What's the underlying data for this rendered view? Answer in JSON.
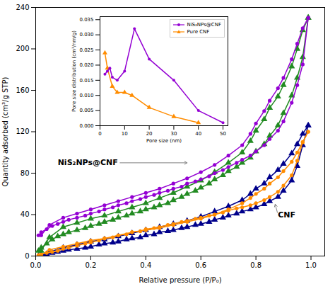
{
  "chart_data": [
    {
      "type": "line",
      "xlabel": "Relative pressure (P/P₀)",
      "ylabel": "Quantity adsorbed (cm³/g STP)",
      "xlim": [
        0.0,
        1.05
      ],
      "ylim": [
        0,
        240
      ],
      "xticks": [
        {
          "value": 0.0,
          "label": "0.0"
        },
        0.2,
        0.4,
        0.6,
        0.8,
        {
          "value": 1.0,
          "label": "1.0"
        }
      ],
      "yticks": [
        0,
        40,
        80,
        120,
        160,
        200,
        240
      ],
      "series": [
        {
          "color": "#9400D3",
          "marker": "circle",
          "x": [
            0.01,
            0.02,
            0.04,
            0.06,
            0.08,
            0.1,
            0.12,
            0.15,
            0.18,
            0.2,
            0.23,
            0.25,
            0.28,
            0.3,
            0.33,
            0.35,
            0.38,
            0.4,
            0.43,
            0.45,
            0.48,
            0.5,
            0.53,
            0.55,
            0.58,
            0.6,
            0.63,
            0.65,
            0.68,
            0.7,
            0.73,
            0.75,
            0.78,
            0.8,
            0.83,
            0.85,
            0.88,
            0.9,
            0.93,
            0.95,
            0.97,
            0.99
          ],
          "values": [
            20,
            23,
            26,
            29,
            31,
            33,
            35,
            37,
            39,
            41,
            43,
            45,
            47,
            49,
            51,
            53,
            55,
            57,
            59,
            61,
            63,
            65,
            67,
            70,
            72,
            74,
            77,
            80,
            83,
            86,
            90,
            93,
            97,
            101,
            107,
            113,
            121,
            130,
            148,
            165,
            185,
            230
          ]
        },
        {
          "color": "#9400D3",
          "marker": "circle",
          "x": [
            0.99,
            0.97,
            0.95,
            0.93,
            0.9,
            0.88,
            0.85,
            0.83,
            0.8,
            0.78,
            0.75,
            0.7,
            0.65,
            0.6,
            0.55,
            0.5,
            0.45,
            0.4,
            0.35,
            0.3,
            0.25,
            0.2,
            0.15,
            0.1,
            0.05,
            0.02
          ],
          "values": [
            230,
            220,
            205,
            190,
            172,
            162,
            150,
            140,
            128,
            118,
            107,
            97,
            88,
            81,
            75,
            70,
            65,
            61,
            57,
            53,
            49,
            45,
            41,
            37,
            30,
            20
          ]
        },
        {
          "color": "#228B22",
          "marker": "triangle",
          "x": [
            0.01,
            0.02,
            0.04,
            0.06,
            0.08,
            0.1,
            0.12,
            0.15,
            0.18,
            0.2,
            0.23,
            0.25,
            0.28,
            0.3,
            0.33,
            0.35,
            0.38,
            0.4,
            0.43,
            0.45,
            0.48,
            0.5,
            0.53,
            0.55,
            0.58,
            0.6,
            0.63,
            0.65,
            0.68,
            0.7,
            0.73,
            0.75,
            0.78,
            0.8,
            0.83,
            0.85,
            0.88,
            0.9,
            0.93,
            0.95,
            0.97,
            0.99
          ],
          "values": [
            5,
            8,
            12,
            16,
            19,
            21,
            23,
            25,
            27,
            29,
            31,
            33,
            35,
            37,
            39,
            41,
            43,
            45,
            47,
            49,
            51,
            54,
            57,
            60,
            63,
            66,
            70,
            74,
            78,
            82,
            86,
            90,
            95,
            101,
            108,
            116,
            126,
            138,
            155,
            172,
            192,
            230
          ]
        },
        {
          "color": "#228B22",
          "marker": "triangle",
          "x": [
            0.99,
            0.97,
            0.95,
            0.93,
            0.9,
            0.88,
            0.85,
            0.83,
            0.8,
            0.78,
            0.75,
            0.7,
            0.65,
            0.6,
            0.55,
            0.5,
            0.45,
            0.4,
            0.35,
            0.3,
            0.25,
            0.2,
            0.15,
            0.1,
            0.05,
            0.02
          ],
          "values": [
            230,
            218,
            200,
            183,
            165,
            154,
            143,
            132,
            121,
            111,
            100,
            90,
            81,
            73,
            67,
            61,
            56,
            51,
            47,
            43,
            39,
            36,
            32,
            28,
            18,
            5
          ]
        },
        {
          "color": "#FF8C00",
          "marker": "circle",
          "x": [
            0.01,
            0.02,
            0.04,
            0.06,
            0.08,
            0.1,
            0.12,
            0.15,
            0.18,
            0.2,
            0.23,
            0.25,
            0.28,
            0.3,
            0.33,
            0.35,
            0.38,
            0.4,
            0.43,
            0.45,
            0.48,
            0.5,
            0.53,
            0.55,
            0.58,
            0.6,
            0.63,
            0.65,
            0.68,
            0.7,
            0.73,
            0.75,
            0.78,
            0.8,
            0.83,
            0.85,
            0.88,
            0.9,
            0.93,
            0.95,
            0.97,
            0.99
          ],
          "values": [
            1,
            2,
            3,
            4,
            5,
            7,
            8,
            10,
            12,
            13,
            15,
            17,
            18,
            20,
            21,
            23,
            24,
            26,
            27,
            28,
            30,
            31,
            33,
            34,
            36,
            37,
            39,
            40,
            42,
            44,
            46,
            47,
            49,
            51,
            54,
            57,
            62,
            68,
            78,
            92,
            110,
            120
          ]
        },
        {
          "color": "#FF8C00",
          "marker": "circle",
          "x": [
            0.99,
            0.97,
            0.95,
            0.93,
            0.9,
            0.88,
            0.85,
            0.83,
            0.8,
            0.78,
            0.75,
            0.7,
            0.65,
            0.6,
            0.55,
            0.5,
            0.45,
            0.4,
            0.35,
            0.3,
            0.25,
            0.2,
            0.15,
            0.1,
            0.05,
            0.02
          ],
          "values": [
            120,
            110,
            100,
            91,
            82,
            76,
            70,
            65,
            60,
            56,
            51,
            45,
            40,
            36,
            33,
            30,
            27,
            25,
            23,
            20,
            17,
            15,
            12,
            9,
            6,
            1
          ]
        },
        {
          "color": "#00008B",
          "marker": "triangle",
          "x": [
            0.01,
            0.02,
            0.04,
            0.06,
            0.08,
            0.1,
            0.12,
            0.15,
            0.18,
            0.2,
            0.23,
            0.25,
            0.28,
            0.3,
            0.33,
            0.35,
            0.38,
            0.4,
            0.43,
            0.45,
            0.48,
            0.5,
            0.53,
            0.55,
            0.58,
            0.6,
            0.63,
            0.65,
            0.68,
            0.7,
            0.73,
            0.75,
            0.78,
            0.8,
            0.83,
            0.85,
            0.88,
            0.9,
            0.93,
            0.95,
            0.97,
            0.99
          ],
          "values": [
            0,
            1,
            2,
            3,
            4,
            5,
            6,
            7,
            8,
            9,
            11,
            12,
            13,
            14,
            16,
            17,
            18,
            20,
            21,
            23,
            24,
            25,
            27,
            28,
            30,
            31,
            33,
            35,
            37,
            39,
            41,
            43,
            45,
            47,
            50,
            53,
            57,
            63,
            73,
            87,
            107,
            126
          ]
        },
        {
          "color": "#00008B",
          "marker": "triangle",
          "x": [
            0.99,
            0.97,
            0.95,
            0.93,
            0.9,
            0.88,
            0.85,
            0.83,
            0.8,
            0.78,
            0.75,
            0.7,
            0.65,
            0.6,
            0.55,
            0.5,
            0.45,
            0.4,
            0.35,
            0.3,
            0.25,
            0.2,
            0.15,
            0.1,
            0.05,
            0.02
          ],
          "values": [
            126,
            118,
            108,
            99,
            89,
            83,
            76,
            70,
            65,
            60,
            54,
            48,
            43,
            38,
            34,
            31,
            28,
            25,
            22,
            19,
            16,
            14,
            11,
            8,
            4,
            0
          ]
        }
      ],
      "annotations": [
        {
          "text": "NiS₂NPs@CNF",
          "xy": [
            0.55,
            90
          ],
          "xytext": [
            0.08,
            90
          ]
        },
        {
          "text": "CNF",
          "xy": [
            0.87,
            50
          ],
          "xytext": [
            0.88,
            40
          ]
        }
      ]
    },
    {
      "type": "line",
      "xlabel": "Pore size (nm)",
      "ylabel": "Pore size distribution (cm³/nm/g)",
      "xlim": [
        0,
        52
      ],
      "ylim": [
        0,
        0.036
      ],
      "xticks": [
        0,
        10,
        20,
        30,
        40,
        50
      ],
      "yticks": [
        {
          "value": 0.0,
          "label": "0.000"
        },
        0.005,
        {
          "value": 0.01,
          "label": "0.010"
        },
        0.015,
        {
          "value": 0.02,
          "label": "0.020"
        },
        0.025,
        {
          "value": 0.03,
          "label": "0.030"
        },
        0.035
      ],
      "legend": "upper right",
      "series": [
        {
          "name": "NiS₂NPs@CNF",
          "color": "#9400D3",
          "marker": "circle",
          "x": [
            2,
            3,
            4,
            5,
            7,
            10,
            14,
            20,
            30,
            40,
            50
          ],
          "values": [
            0.017,
            0.018,
            0.019,
            0.016,
            0.015,
            0.018,
            0.032,
            0.022,
            0.015,
            0.005,
            0.001
          ]
        },
        {
          "name": "Pure CNF",
          "color": "#FF8C00",
          "marker": "triangle",
          "x": [
            2,
            3,
            5,
            7,
            10,
            13,
            20,
            30,
            40
          ],
          "values": [
            0.024,
            0.019,
            0.013,
            0.011,
            0.011,
            0.01,
            0.006,
            0.003,
            0.001
          ]
        }
      ]
    }
  ]
}
